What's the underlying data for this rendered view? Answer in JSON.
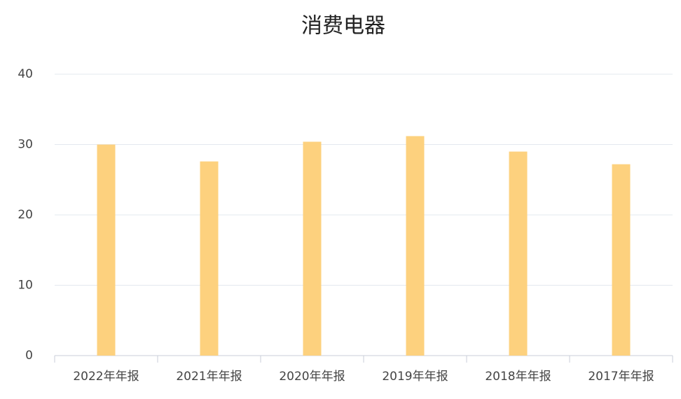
{
  "chart_data": {
    "type": "bar",
    "title": "消费电器",
    "categories": [
      "2022年年报",
      "2021年年报",
      "2020年年报",
      "2019年年报",
      "2018年年报",
      "2017年年报"
    ],
    "values": [
      30.0,
      27.6,
      30.4,
      31.2,
      29.0,
      27.2
    ],
    "color": "#fdd17e",
    "ylim": [
      0,
      40
    ],
    "yticks": [
      0,
      10,
      20,
      30,
      40
    ],
    "grid": true
  }
}
